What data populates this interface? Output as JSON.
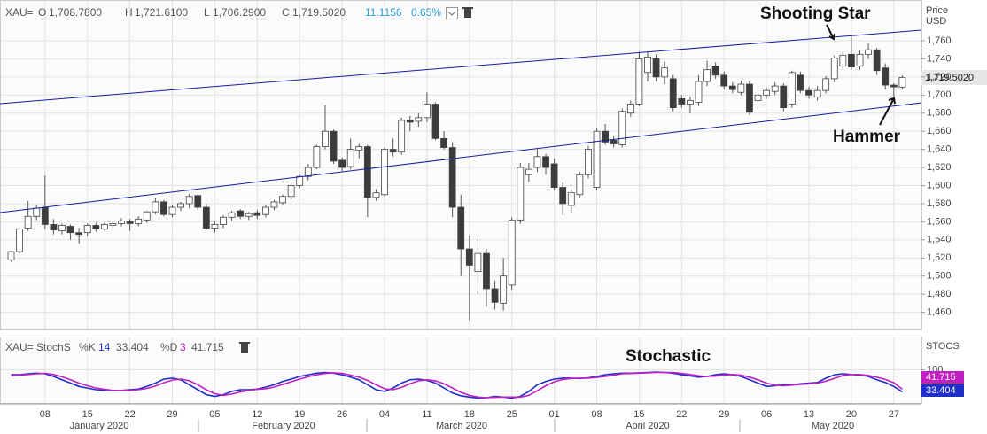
{
  "header": {
    "symbol": "XAU=",
    "open_label": "O",
    "open": "1,708.7800",
    "high_label": "H",
    "high": "1,721.6100",
    "low_label": "L",
    "low": "1,706.2900",
    "close_label": "C",
    "close": "1,719.5020",
    "change": "11.1156",
    "change_pct": "0.65%"
  },
  "chart_data": [
    {
      "type": "candlestick",
      "y_axis_title": "Price",
      "y_axis_unit": "USD",
      "categories": [
        null,
        null,
        null,
        null,
        "08",
        null,
        null,
        null,
        null,
        "15",
        null,
        null,
        null,
        null,
        "22",
        null,
        null,
        null,
        null,
        "29",
        null,
        null,
        null,
        null,
        "05",
        null,
        null,
        null,
        null,
        "12",
        null,
        null,
        null,
        null,
        "19",
        null,
        null,
        null,
        null,
        "26",
        null,
        null,
        null,
        null,
        "04",
        null,
        null,
        null,
        null,
        "11",
        null,
        null,
        null,
        null,
        "18",
        null,
        null,
        null,
        null,
        "25",
        null,
        null,
        null,
        null,
        "01",
        null,
        null,
        null,
        null,
        "08",
        null,
        null,
        null,
        null,
        "15",
        null,
        null,
        null,
        null,
        "22",
        null,
        null,
        null,
        null,
        "29",
        null,
        null,
        null,
        null,
        "06",
        null,
        null,
        null,
        null,
        "13",
        null,
        null,
        null,
        null,
        "20",
        null,
        null,
        null,
        null,
        "27",
        null
      ],
      "months": [
        "January 2020",
        "February 2020",
        "March 2020",
        "April 2020",
        "May 2020"
      ],
      "ohlc": [
        [
          1518,
          1528,
          1516,
          1527
        ],
        [
          1527,
          1553,
          1525,
          1552
        ],
        [
          1553,
          1583,
          1550,
          1566
        ],
        [
          1566,
          1578,
          1562,
          1575
        ],
        [
          1576,
          1611,
          1552,
          1557
        ],
        [
          1557,
          1563,
          1546,
          1551
        ],
        [
          1550,
          1558,
          1546,
          1556
        ],
        [
          1555,
          1557,
          1540,
          1548
        ],
        [
          1548,
          1553,
          1536,
          1546
        ],
        [
          1548,
          1558,
          1544,
          1556
        ],
        [
          1556,
          1559,
          1549,
          1552
        ],
        [
          1552,
          1559,
          1550,
          1557
        ],
        [
          1556,
          1562,
          1553,
          1558
        ],
        [
          1558,
          1564,
          1555,
          1561
        ],
        [
          1560,
          1563,
          1550,
          1558
        ],
        [
          1558,
          1566,
          1555,
          1563
        ],
        [
          1562,
          1572,
          1559,
          1571
        ],
        [
          1571,
          1586,
          1568,
          1582
        ],
        [
          1582,
          1584,
          1566,
          1568
        ],
        [
          1568,
          1578,
          1565,
          1576
        ],
        [
          1576,
          1582,
          1572,
          1580
        ],
        [
          1580,
          1591,
          1575,
          1588
        ],
        [
          1589,
          1590,
          1573,
          1576
        ],
        [
          1576,
          1580,
          1551,
          1553
        ],
        [
          1553,
          1560,
          1548,
          1557
        ],
        [
          1557,
          1567,
          1553,
          1565
        ],
        [
          1565,
          1572,
          1561,
          1570
        ],
        [
          1572,
          1574,
          1563,
          1566
        ],
        [
          1566,
          1571,
          1562,
          1569
        ],
        [
          1570,
          1573,
          1563,
          1567
        ],
        [
          1568,
          1578,
          1565,
          1576
        ],
        [
          1576,
          1584,
          1573,
          1582
        ],
        [
          1581,
          1590,
          1578,
          1588
        ],
        [
          1588,
          1604,
          1585,
          1600
        ],
        [
          1600,
          1612,
          1597,
          1610
        ],
        [
          1610,
          1624,
          1606,
          1620
        ],
        [
          1620,
          1645,
          1618,
          1643
        ],
        [
          1643,
          1689,
          1640,
          1660
        ],
        [
          1660,
          1662,
          1624,
          1627
        ],
        [
          1628,
          1631,
          1616,
          1620
        ],
        [
          1621,
          1652,
          1618,
          1640
        ],
        [
          1639,
          1646,
          1630,
          1643
        ],
        [
          1643,
          1645,
          1565,
          1587
        ],
        [
          1587,
          1596,
          1583,
          1592
        ],
        [
          1590,
          1642,
          1588,
          1640
        ],
        [
          1640,
          1652,
          1632,
          1637
        ],
        [
          1637,
          1675,
          1634,
          1672
        ],
        [
          1672,
          1677,
          1660,
          1670
        ],
        [
          1671,
          1680,
          1665,
          1675
        ],
        [
          1675,
          1703,
          1670,
          1690
        ],
        [
          1690,
          1692,
          1650,
          1652
        ],
        [
          1652,
          1660,
          1640,
          1642
        ],
        [
          1642,
          1648,
          1565,
          1576
        ],
        [
          1576,
          1590,
          1500,
          1530
        ],
        [
          1530,
          1545,
          1451,
          1512
        ],
        [
          1505,
          1545,
          1480,
          1525
        ],
        [
          1525,
          1530,
          1466,
          1486
        ],
        [
          1486,
          1495,
          1463,
          1471
        ],
        [
          1470,
          1520,
          1462,
          1500
        ],
        [
          1490,
          1565,
          1485,
          1562
        ],
        [
          1562,
          1625,
          1558,
          1620
        ],
        [
          1612,
          1625,
          1604,
          1618
        ],
        [
          1620,
          1640,
          1615,
          1632
        ],
        [
          1632,
          1635,
          1612,
          1620
        ],
        [
          1624,
          1630,
          1595,
          1598
        ],
        [
          1598,
          1603,
          1567,
          1580
        ],
        [
          1578,
          1596,
          1570,
          1592
        ],
        [
          1590,
          1615,
          1586,
          1612
        ],
        [
          1612,
          1644,
          1608,
          1640
        ],
        [
          1598,
          1664,
          1595,
          1660
        ],
        [
          1660,
          1668,
          1645,
          1648
        ],
        [
          1650,
          1655,
          1642,
          1646
        ],
        [
          1645,
          1685,
          1642,
          1682
        ],
        [
          1680,
          1694,
          1676,
          1690
        ],
        [
          1690,
          1748,
          1688,
          1740
        ],
        [
          1725,
          1748,
          1715,
          1742
        ],
        [
          1740,
          1745,
          1715,
          1720
        ],
        [
          1720,
          1737,
          1712,
          1730
        ],
        [
          1718,
          1722,
          1682,
          1686
        ],
        [
          1696,
          1700,
          1686,
          1690
        ],
        [
          1690,
          1698,
          1680,
          1694
        ],
        [
          1692,
          1722,
          1688,
          1715
        ],
        [
          1715,
          1738,
          1710,
          1728
        ],
        [
          1732,
          1736,
          1718,
          1722
        ],
        [
          1722,
          1726,
          1706,
          1710
        ],
        [
          1710,
          1714,
          1702,
          1706
        ],
        [
          1703,
          1716,
          1700,
          1712
        ],
        [
          1712,
          1716,
          1678,
          1681
        ],
        [
          1694,
          1703,
          1684,
          1700
        ],
        [
          1700,
          1708,
          1696,
          1705
        ],
        [
          1704,
          1714,
          1700,
          1710
        ],
        [
          1710,
          1713,
          1682,
          1686
        ],
        [
          1690,
          1727,
          1686,
          1725
        ],
        [
          1722,
          1726,
          1702,
          1705
        ],
        [
          1705,
          1709,
          1696,
          1700
        ],
        [
          1698,
          1710,
          1694,
          1705
        ],
        [
          1705,
          1721,
          1702,
          1718
        ],
        [
          1718,
          1744,
          1714,
          1741
        ],
        [
          1732,
          1748,
          1728,
          1744
        ],
        [
          1745,
          1765,
          1728,
          1731
        ],
        [
          1732,
          1750,
          1728,
          1745
        ],
        [
          1745,
          1757,
          1740,
          1750
        ],
        [
          1750,
          1752,
          1722,
          1727
        ],
        [
          1730,
          1735,
          1706,
          1711
        ],
        [
          1711,
          1713,
          1696,
          1709
        ],
        [
          1708.78,
          1721.61,
          1706.29,
          1719.502
        ]
      ],
      "ylim": [
        1441,
        1805
      ],
      "yticks": [
        {
          "value": 1460,
          "label": "1,460"
        },
        {
          "value": 1480,
          "label": "1,480"
        },
        {
          "value": 1500,
          "label": "1,500"
        },
        {
          "value": 1520,
          "label": "1,520"
        },
        {
          "value": 1540,
          "label": "1,540"
        },
        {
          "value": 1560,
          "label": "1,560"
        },
        {
          "value": 1580,
          "label": "1,580"
        },
        {
          "value": 1600,
          "label": "1,600"
        },
        {
          "value": 1620,
          "label": "1,620"
        },
        {
          "value": 1640,
          "label": "1,640"
        },
        {
          "value": 1660,
          "label": "1,660"
        },
        {
          "value": 1680,
          "label": "1,680"
        },
        {
          "value": 1700,
          "label": "1,700"
        },
        {
          "value": 1720,
          "label": "1,720"
        },
        {
          "value": 1740,
          "label": "1,740"
        },
        {
          "value": 1760,
          "label": "1,760"
        }
      ],
      "grid": true,
      "up_color": "#ffffff",
      "down_color": "#3c3c3c",
      "annotations": [
        "Shooting Star",
        "Hammer"
      ]
    },
    {
      "type": "line",
      "axis_title": "STOCS",
      "legend_name": "XAU= StochS",
      "series": [
        {
          "name": "%K",
          "period": 14,
          "color": "#1f2fc8",
          "values": [
            85,
            85,
            88,
            90,
            88,
            80,
            70,
            60,
            50,
            45,
            40,
            38,
            37,
            38,
            40,
            42,
            50,
            60,
            72,
            75,
            70,
            55,
            40,
            25,
            20,
            25,
            35,
            40,
            40,
            42,
            48,
            55,
            65,
            72,
            80,
            85,
            90,
            92,
            90,
            85,
            78,
            70,
            55,
            40,
            35,
            45,
            60,
            70,
            72,
            68,
            60,
            45,
            30,
            22,
            18,
            15,
            16,
            20,
            18,
            15,
            20,
            35,
            55,
            65,
            72,
            75,
            75,
            74,
            76,
            80,
            85,
            88,
            90,
            90,
            91,
            92,
            93,
            92,
            90,
            85,
            82,
            78,
            80,
            85,
            88,
            85,
            80,
            70,
            60,
            50,
            52,
            55,
            55,
            58,
            60,
            62,
            75,
            85,
            88,
            86,
            84,
            80,
            70,
            62,
            50,
            33.404
          ]
        },
        {
          "name": "%D",
          "period": 3,
          "color": "#c21fc2",
          "values": [
            82,
            84,
            86,
            88,
            89,
            86,
            79,
            70,
            60,
            52,
            45,
            41,
            38,
            38,
            38,
            40,
            44,
            51,
            61,
            69,
            72,
            67,
            55,
            40,
            28,
            23,
            27,
            33,
            38,
            41,
            43,
            48,
            56,
            64,
            72,
            79,
            85,
            89,
            91,
            89,
            84,
            78,
            68,
            55,
            43,
            40,
            47,
            58,
            67,
            70,
            67,
            58,
            45,
            32,
            23,
            18,
            16,
            17,
            18,
            18,
            18,
            23,
            37,
            52,
            64,
            71,
            74,
            75,
            75,
            77,
            80,
            84,
            88,
            89,
            90,
            91,
            92,
            92,
            92,
            89,
            86,
            82,
            80,
            81,
            84,
            86,
            84,
            78,
            70,
            60,
            54,
            52,
            54,
            56,
            58,
            60,
            66,
            74,
            83,
            86,
            86,
            83,
            78,
            71,
            61,
            41.715
          ]
        }
      ],
      "ylim": [
        0,
        200
      ],
      "yticks": [
        100
      ],
      "grid": true,
      "annotation": "Stochastic"
    }
  ]
}
